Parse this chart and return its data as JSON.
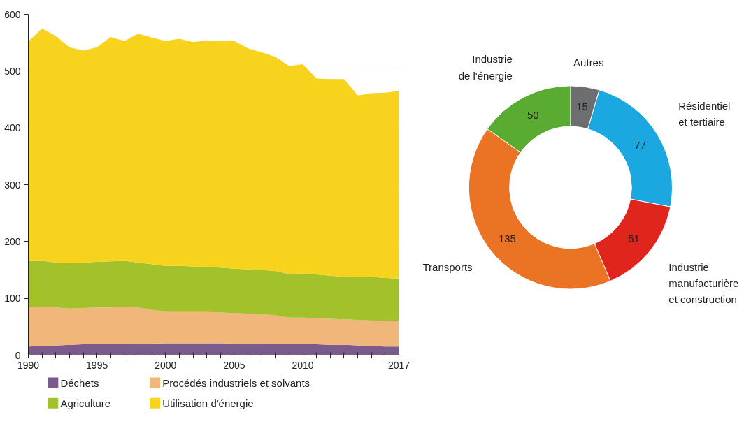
{
  "chart_data": [
    {
      "type": "area",
      "stacked": true,
      "x": [
        1990,
        1991,
        1992,
        1993,
        1994,
        1995,
        1996,
        1997,
        1998,
        1999,
        2000,
        2001,
        2002,
        2003,
        2004,
        2005,
        2006,
        2007,
        2008,
        2009,
        2010,
        2011,
        2012,
        2013,
        2014,
        2015,
        2016,
        2017
      ],
      "series": [
        {
          "name": "Déchets",
          "color": "#7b5a8c",
          "values": [
            15,
            16,
            17,
            18,
            19,
            19,
            19,
            20,
            20,
            20,
            21,
            21,
            21,
            21,
            21,
            20,
            20,
            20,
            19,
            19,
            19,
            19,
            18,
            18,
            17,
            16,
            15,
            15
          ]
        },
        {
          "name": "Procédés industriels et solvants",
          "color": "#f0b67a",
          "values": [
            70,
            69,
            67,
            64,
            64,
            65,
            65,
            65,
            64,
            60,
            55,
            55,
            55,
            55,
            54,
            54,
            53,
            52,
            51,
            47,
            47,
            46,
            46,
            45,
            45,
            45,
            46,
            45
          ]
        },
        {
          "name": "Agriculture",
          "color": "#a2c12a",
          "values": [
            81,
            81,
            79,
            80,
            80,
            80,
            81,
            81,
            79,
            80,
            81,
            81,
            80,
            79,
            79,
            78,
            78,
            78,
            78,
            77,
            78,
            77,
            76,
            75,
            76,
            77,
            75,
            75
          ]
        },
        {
          "name": "Utilisation d'énergie",
          "color": "#f7d31d",
          "values": [
            386,
            409,
            399,
            380,
            373,
            378,
            395,
            387,
            403,
            399,
            396,
            400,
            395,
            399,
            399,
            401,
            389,
            383,
            377,
            366,
            368,
            345,
            346,
            348,
            319,
            323,
            326,
            330
          ]
        }
      ],
      "xlim": [
        1990,
        2017
      ],
      "ylim": [
        0,
        600
      ],
      "yticks": [
        0,
        100,
        200,
        300,
        400,
        500,
        600
      ],
      "xticks": [
        1990,
        {
          "value": 1991,
          "label": null
        },
        {
          "value": 1992,
          "label": null
        },
        {
          "value": 1993,
          "label": null
        },
        {
          "value": 1994,
          "label": null
        },
        1995,
        {
          "value": 1996,
          "label": null
        },
        {
          "value": 1997,
          "label": null
        },
        {
          "value": 1998,
          "label": null
        },
        {
          "value": 1999,
          "label": null
        },
        2000,
        {
          "value": 2001,
          "label": null
        },
        {
          "value": 2002,
          "label": null
        },
        {
          "value": 2003,
          "label": null
        },
        {
          "value": 2004,
          "label": null
        },
        2005,
        {
          "value": 2006,
          "label": null
        },
        {
          "value": 2007,
          "label": null
        },
        {
          "value": 2008,
          "label": null
        },
        {
          "value": 2009,
          "label": null
        },
        2010,
        {
          "value": 2011,
          "label": null
        },
        {
          "value": 2012,
          "label": null
        },
        {
          "value": 2013,
          "label": null
        },
        {
          "value": 2014,
          "label": null
        },
        {
          "value": 2015,
          "label": null
        },
        {
          "value": 2016,
          "label": null
        },
        2017
      ],
      "grid": "y",
      "legend": "bottom"
    },
    {
      "type": "donut",
      "categories": [
        "Autres",
        "Résidentiel\net tertiaire",
        "Industrie\nmanufacturière\net construction",
        "Transports",
        "Industrie\nde l'énergie"
      ],
      "values": [
        15,
        77,
        51,
        135,
        50
      ],
      "colors": [
        "#6d6e70",
        "#1ba7e0",
        "#e0261c",
        "#ea7423",
        "#5aab32"
      ],
      "data_labels": true
    }
  ]
}
